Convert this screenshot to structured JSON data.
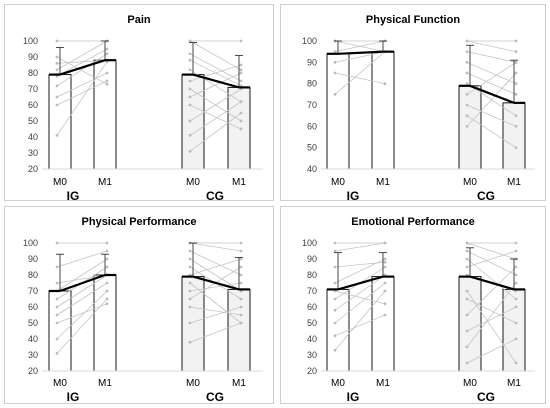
{
  "chart_data": [
    {
      "type": "bar",
      "title": "Pain",
      "yticks": [
        20,
        30,
        40,
        50,
        60,
        70,
        80,
        90,
        100
      ],
      "ylim": [
        20,
        100
      ],
      "groups": [
        {
          "name": "IG",
          "categories": [
            "M0",
            "M1"
          ],
          "values": [
            79,
            88
          ],
          "error_upper": [
            96,
            100
          ],
          "fill": "#ffffff",
          "individuals": [
            [
              41,
              87
            ],
            [
              60,
              75
            ],
            [
              65,
              80
            ],
            [
              72,
              92
            ],
            [
              78,
              95
            ],
            [
              82,
              100
            ],
            [
              86,
              88
            ],
            [
              90,
              73
            ],
            [
              100,
              100
            ]
          ]
        },
        {
          "name": "CG",
          "categories": [
            "M0",
            "M1"
          ],
          "values": [
            79,
            71
          ],
          "error_upper": [
            99,
            91
          ],
          "fill": "#f2f2f2",
          "individuals": [
            [
              31,
              55
            ],
            [
              41,
              62
            ],
            [
              50,
              70
            ],
            [
              60,
              45
            ],
            [
              65,
              80
            ],
            [
              70,
              50
            ],
            [
              75,
              85
            ],
            [
              82,
              62
            ],
            [
              88,
              72
            ],
            [
              92,
              75
            ],
            [
              100,
              82
            ],
            [
              100,
              100
            ]
          ]
        }
      ]
    },
    {
      "type": "bar",
      "title": "Physical Function",
      "yticks": [
        40,
        50,
        60,
        70,
        80,
        90,
        100
      ],
      "ylim": [
        40,
        100
      ],
      "groups": [
        {
          "name": "IG",
          "categories": [
            "M0",
            "M1"
          ],
          "values": [
            94,
            95
          ],
          "error_upper": [
            100,
            100
          ],
          "fill": "#ffffff",
          "individuals": [
            [
              75,
              95
            ],
            [
              85,
              80
            ],
            [
              90,
              95
            ],
            [
              95,
              100
            ],
            [
              100,
              95
            ],
            [
              100,
              100
            ]
          ]
        },
        {
          "name": "CG",
          "categories": [
            "M0",
            "M1"
          ],
          "values": [
            79,
            71
          ],
          "error_upper": [
            98,
            91
          ],
          "fill": "#f2f2f2",
          "individuals": [
            [
              60,
              85
            ],
            [
              65,
              50
            ],
            [
              70,
              60
            ],
            [
              75,
              90
            ],
            [
              80,
              65
            ],
            [
              85,
              75
            ],
            [
              90,
              80
            ],
            [
              95,
              90
            ],
            [
              100,
              95
            ],
            [
              100,
              100
            ]
          ]
        }
      ]
    },
    {
      "type": "bar",
      "title": "Physical Performance",
      "yticks": [
        20,
        30,
        40,
        50,
        60,
        70,
        80,
        90,
        100
      ],
      "ylim": [
        20,
        100
      ],
      "groups": [
        {
          "name": "IG",
          "categories": [
            "M0",
            "M1"
          ],
          "values": [
            70,
            80
          ],
          "error_upper": [
            93,
            93
          ],
          "fill": "#ffffff",
          "individuals": [
            [
              31,
              65
            ],
            [
              40,
              70
            ],
            [
              50,
              62
            ],
            [
              55,
              75
            ],
            [
              60,
              80
            ],
            [
              65,
              85
            ],
            [
              70,
              90
            ],
            [
              75,
              80
            ],
            [
              85,
              95
            ],
            [
              100,
              100
            ]
          ]
        },
        {
          "name": "CG",
          "categories": [
            "M0",
            "M1"
          ],
          "values": [
            79,
            71
          ],
          "error_upper": [
            100,
            91
          ],
          "fill": "#f2f2f2",
          "individuals": [
            [
              38,
              50
            ],
            [
              50,
              60
            ],
            [
              60,
              55
            ],
            [
              65,
              85
            ],
            [
              70,
              75
            ],
            [
              75,
              50
            ],
            [
              80,
              90
            ],
            [
              85,
              65
            ],
            [
              90,
              70
            ],
            [
              95,
              80
            ],
            [
              100,
              95
            ],
            [
              100,
              100
            ]
          ]
        }
      ]
    },
    {
      "type": "bar",
      "title": "Emotional Performance",
      "yticks": [
        20,
        30,
        40,
        50,
        60,
        70,
        80,
        90,
        100
      ],
      "ylim": [
        20,
        100
      ],
      "groups": [
        {
          "name": "IG",
          "categories": [
            "M0",
            "M1"
          ],
          "values": [
            71,
            79
          ],
          "error_upper": [
            94,
            94
          ],
          "fill": "#ffffff",
          "individuals": [
            [
              33,
              70
            ],
            [
              42,
              55
            ],
            [
              50,
              75
            ],
            [
              58,
              80
            ],
            [
              65,
              85
            ],
            [
              70,
              62
            ],
            [
              75,
              90
            ],
            [
              85,
              88
            ],
            [
              95,
              100
            ],
            [
              100,
              100
            ]
          ]
        },
        {
          "name": "CG",
          "categories": [
            "M0",
            "M1"
          ],
          "values": [
            79,
            71
          ],
          "error_upper": [
            97,
            90
          ],
          "fill": "#f2f2f2",
          "individuals": [
            [
              25,
              40
            ],
            [
              35,
              75
            ],
            [
              45,
              60
            ],
            [
              55,
              85
            ],
            [
              65,
              50
            ],
            [
              70,
              25
            ],
            [
              80,
              70
            ],
            [
              85,
              95
            ],
            [
              90,
              65
            ],
            [
              95,
              80
            ],
            [
              100,
              90
            ],
            [
              100,
              100
            ]
          ]
        }
      ]
    }
  ]
}
